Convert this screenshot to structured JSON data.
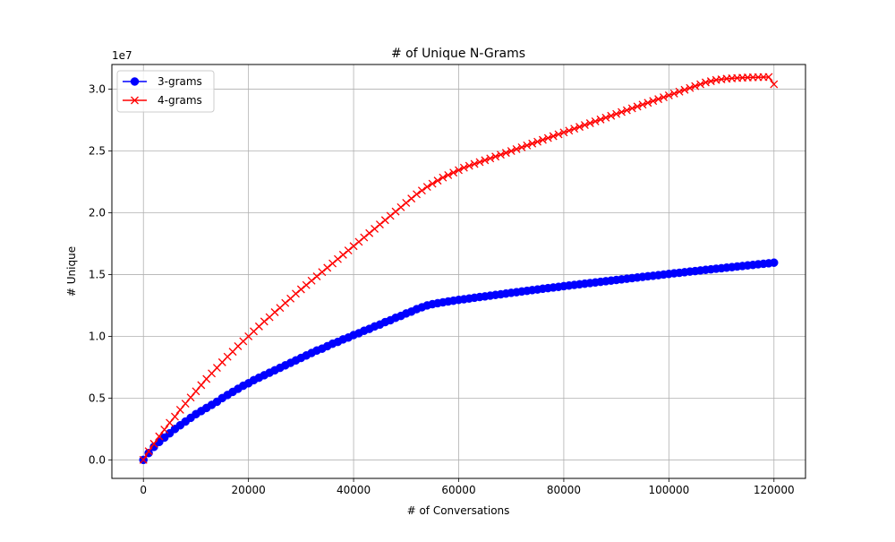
{
  "chart_data": {
    "type": "line",
    "title": "# of Unique N-Grams",
    "xlabel": "# of Conversations",
    "ylabel": "# Unique",
    "y_offset_label": "1e7",
    "y_scale_factor": 10000000,
    "xlim": [
      -6000,
      126000
    ],
    "ylim": [
      -1500000,
      32000000
    ],
    "xticks": [
      0,
      20000,
      40000,
      60000,
      80000,
      100000,
      120000
    ],
    "xtick_labels": [
      "0",
      "20000",
      "40000",
      "60000",
      "80000",
      "100000",
      "120000"
    ],
    "yticks": [
      0,
      5000000,
      10000000,
      15000000,
      20000000,
      25000000,
      30000000
    ],
    "ytick_labels": [
      "0.0",
      "0.5",
      "1.0",
      "1.5",
      "2.0",
      "2.5",
      "3.0"
    ],
    "grid": true,
    "legend_position": "upper-left",
    "x": [
      0,
      1000,
      2000,
      3000,
      4000,
      5000,
      6000,
      7000,
      8000,
      9000,
      10000,
      11000,
      12000,
      13000,
      14000,
      15000,
      16000,
      17000,
      18000,
      19000,
      20000,
      21000,
      22000,
      23000,
      24000,
      25000,
      26000,
      27000,
      28000,
      29000,
      30000,
      31000,
      32000,
      33000,
      34000,
      35000,
      36000,
      37000,
      38000,
      39000,
      40000,
      41000,
      42000,
      43000,
      44000,
      45000,
      46000,
      47000,
      48000,
      49000,
      50000,
      51000,
      52000,
      53000,
      54000,
      55000,
      56000,
      57000,
      58000,
      59000,
      60000,
      61000,
      62000,
      63000,
      64000,
      65000,
      66000,
      67000,
      68000,
      69000,
      70000,
      71000,
      72000,
      73000,
      74000,
      75000,
      76000,
      77000,
      78000,
      79000,
      80000,
      81000,
      82000,
      83000,
      84000,
      85000,
      86000,
      87000,
      88000,
      89000,
      90000,
      91000,
      92000,
      93000,
      94000,
      95000,
      96000,
      97000,
      98000,
      99000,
      100000,
      101000,
      102000,
      103000,
      104000,
      105000,
      106000,
      107000,
      108000,
      109000,
      110000,
      111000,
      112000,
      113000,
      114000,
      115000,
      116000,
      117000,
      118000,
      119000,
      120000
    ],
    "series": [
      {
        "name": "3-grams",
        "color": "#0000ff",
        "marker": "circle",
        "values": [
          0,
          550000,
          1050000,
          1450000,
          1800000,
          2150000,
          2500000,
          2800000,
          3100000,
          3400000,
          3700000,
          3950000,
          4200000,
          4450000,
          4700000,
          5000000,
          5250000,
          5500000,
          5750000,
          6000000,
          6200000,
          6450000,
          6650000,
          6850000,
          7050000,
          7250000,
          7450000,
          7650000,
          7850000,
          8050000,
          8250000,
          8450000,
          8650000,
          8850000,
          9000000,
          9200000,
          9400000,
          9550000,
          9750000,
          9900000,
          10100000,
          10250000,
          10450000,
          10600000,
          10800000,
          10950000,
          11150000,
          11300000,
          11500000,
          11650000,
          11850000,
          12000000,
          12200000,
          12350000,
          12500000,
          12600000,
          12680000,
          12750000,
          12820000,
          12880000,
          12950000,
          13000000,
          13060000,
          13120000,
          13180000,
          13230000,
          13290000,
          13350000,
          13400000,
          13460000,
          13520000,
          13570000,
          13630000,
          13680000,
          13740000,
          13790000,
          13850000,
          13900000,
          13950000,
          14000000,
          14060000,
          14110000,
          14160000,
          14210000,
          14260000,
          14310000,
          14360000,
          14410000,
          14460000,
          14510000,
          14560000,
          14610000,
          14660000,
          14710000,
          14760000,
          14810000,
          14860000,
          14900000,
          14950000,
          15000000,
          15050000,
          15100000,
          15140000,
          15190000,
          15240000,
          15280000,
          15330000,
          15380000,
          15420000,
          15470000,
          15510000,
          15560000,
          15600000,
          15650000,
          15690000,
          15740000,
          15780000,
          15830000,
          15870000,
          15910000,
          15960000
        ]
      },
      {
        "name": "4-grams",
        "color": "#ff0000",
        "marker": "x",
        "values": [
          0,
          700000,
          1300000,
          1900000,
          2450000,
          3000000,
          3500000,
          4050000,
          4550000,
          5050000,
          5550000,
          6050000,
          6550000,
          7000000,
          7450000,
          7900000,
          8350000,
          8750000,
          9200000,
          9600000,
          10000000,
          10400000,
          10800000,
          11200000,
          11550000,
          11950000,
          12300000,
          12700000,
          13050000,
          13450000,
          13800000,
          14150000,
          14500000,
          14850000,
          15200000,
          15550000,
          15900000,
          16250000,
          16600000,
          16950000,
          17300000,
          17650000,
          18000000,
          18350000,
          18700000,
          19050000,
          19400000,
          19750000,
          20100000,
          20450000,
          20800000,
          21150000,
          21500000,
          21800000,
          22100000,
          22350000,
          22600000,
          22850000,
          23050000,
          23250000,
          23450000,
          23650000,
          23800000,
          23950000,
          24100000,
          24250000,
          24400000,
          24550000,
          24700000,
          24850000,
          25000000,
          25150000,
          25300000,
          25450000,
          25600000,
          25750000,
          25900000,
          26050000,
          26200000,
          26350000,
          26500000,
          26650000,
          26800000,
          26950000,
          27100000,
          27250000,
          27400000,
          27550000,
          27700000,
          27850000,
          28000000,
          28150000,
          28300000,
          28450000,
          28600000,
          28750000,
          28900000,
          29050000,
          29200000,
          29350000,
          29500000,
          29650000,
          29800000,
          29950000,
          30100000,
          30250000,
          30400000,
          30550000,
          30650000,
          30750000,
          30800000,
          30850000,
          30880000,
          30910000,
          30930000,
          30950000,
          30960000,
          30970000,
          30980000,
          30990000,
          30400000
        ]
      }
    ]
  },
  "colors": {
    "background": "#ffffff",
    "grid": "#b0b0b0",
    "axes": "#000000"
  }
}
